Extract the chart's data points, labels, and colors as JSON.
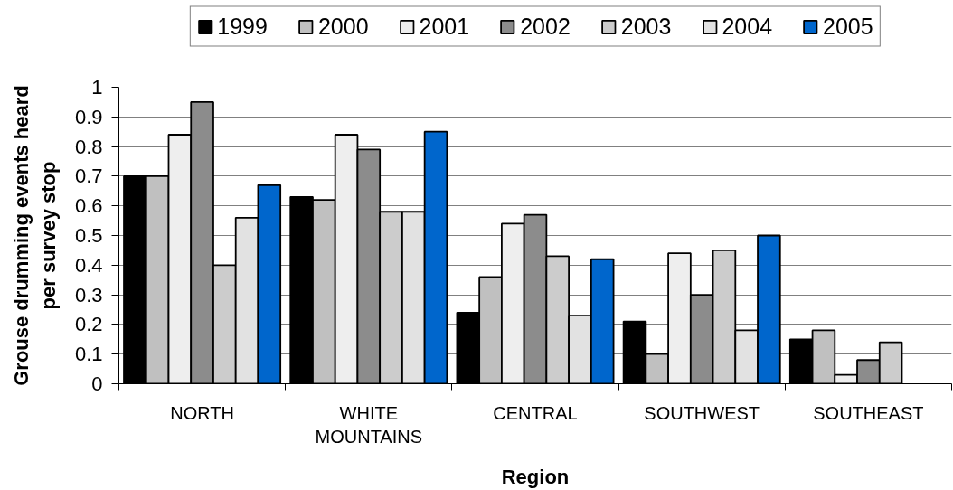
{
  "chart_data": {
    "type": "bar",
    "xlabel": "Region",
    "ylabel": "Grouse drumming events heard per survey stop",
    "categories": [
      "NORTH",
      "WHITE MOUNTAINS",
      "CENTRAL",
      "SOUTHWEST",
      "SOUTHEAST"
    ],
    "series": [
      {
        "name": "1999",
        "color": "#000000",
        "values": [
          0.7,
          0.63,
          0.24,
          0.21,
          0.15
        ]
      },
      {
        "name": "2000",
        "color": "#c0c0c0",
        "values": [
          0.7,
          0.62,
          0.36,
          0.1,
          0.18
        ]
      },
      {
        "name": "2001",
        "color": "#eeeeee",
        "values": [
          0.84,
          0.84,
          0.54,
          0.44,
          0.03
        ]
      },
      {
        "name": "2002",
        "color": "#8c8c8c",
        "values": [
          0.95,
          0.79,
          0.57,
          0.3,
          0.08
        ]
      },
      {
        "name": "2003",
        "color": "#cccccc",
        "values": [
          0.4,
          0.58,
          0.43,
          0.45,
          0.14
        ]
      },
      {
        "name": "2004",
        "color": "#e2e2e2",
        "values": [
          0.56,
          0.58,
          0.23,
          0.18,
          null
        ]
      },
      {
        "name": "2005",
        "color": "#0066cc",
        "values": [
          0.67,
          0.85,
          0.42,
          0.5,
          null
        ]
      }
    ],
    "ylim": [
      0,
      1
    ],
    "yticks": [
      0,
      0.1,
      0.2,
      0.3,
      0.4,
      0.5,
      0.6,
      0.7,
      0.8,
      0.9,
      1
    ],
    "grid": "y",
    "legend": "top"
  }
}
